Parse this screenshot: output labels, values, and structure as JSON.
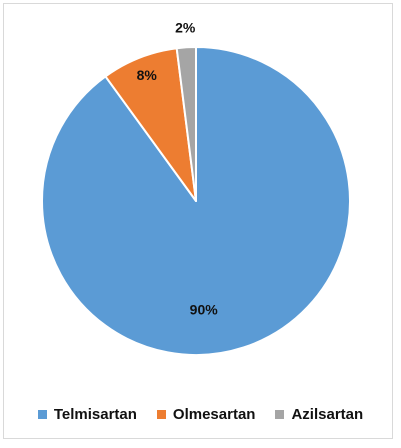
{
  "chart_data": {
    "type": "pie",
    "categories": [
      "Telmisartan",
      "Olmesartan",
      "Azilsartan"
    ],
    "values": [
      90,
      8,
      2
    ],
    "value_labels": [
      "90%",
      "8%",
      "2%"
    ],
    "colors": [
      "#5b9bd5",
      "#ed7d31",
      "#a5a5a5"
    ],
    "start_angle": "12 o'clock",
    "direction": "clockwise",
    "legend_position": "bottom",
    "title": ""
  }
}
